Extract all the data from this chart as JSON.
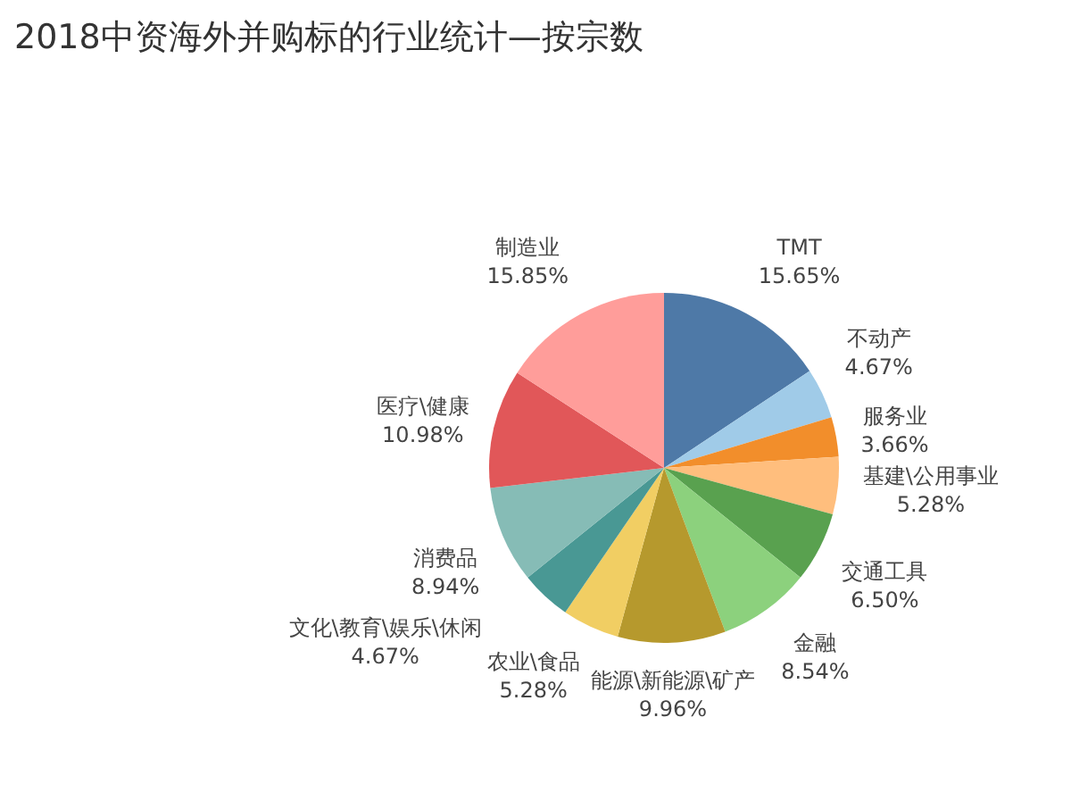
{
  "chart_data": {
    "type": "pie",
    "title": "2018中资海外并购标的行业统计—按宗数",
    "categories": [
      "TMT",
      "不动产",
      "服务业",
      "基建\\公用事业",
      "交通工具",
      "金融",
      "能源\\新能源\\矿产",
      "农业\\食品",
      "文化\\教育\\娱乐\\休闲",
      "消费品",
      "医疗\\健康",
      "制造业"
    ],
    "values": [
      15.65,
      4.67,
      3.66,
      5.28,
      6.5,
      8.54,
      9.96,
      5.28,
      4.67,
      8.94,
      10.98,
      15.85
    ],
    "value_labels": [
      "15.65%",
      "4.67%",
      "3.66%",
      "5.28%",
      "6.50%",
      "8.54%",
      "9.96%",
      "5.28%",
      "4.67%",
      "8.94%",
      "10.98%",
      "15.85%"
    ],
    "colors": [
      "#4e79a7",
      "#a0cbe8",
      "#f28e2b",
      "#ffbe7d",
      "#59a14f",
      "#8cd17d",
      "#b6992d",
      "#f1ce63",
      "#499894",
      "#86bcb6",
      "#e15759",
      "#ff9d9a"
    ],
    "legend": false
  }
}
